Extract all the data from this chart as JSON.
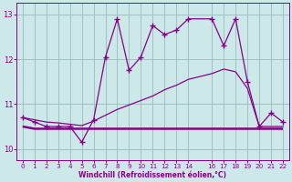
{
  "xlabel": "Windchill (Refroidissement éolien,°C)",
  "background_color": "#cce8e8",
  "grid_color": "#99bbbb",
  "line_color": "#880088",
  "xlim": [
    -0.5,
    22.5
  ],
  "ylim": [
    9.75,
    13.25
  ],
  "yticks": [
    10,
    11,
    12,
    13
  ],
  "xticks": [
    0,
    1,
    2,
    3,
    4,
    5,
    6,
    7,
    8,
    9,
    10,
    11,
    12,
    13,
    14,
    16,
    17,
    18,
    19,
    20,
    21,
    22
  ],
  "s1_x": [
    0,
    1,
    2,
    3,
    4,
    5,
    6,
    7,
    8,
    9,
    10,
    11,
    12,
    13,
    14,
    16,
    17,
    18,
    19,
    20,
    21,
    22
  ],
  "s1_y": [
    10.7,
    10.6,
    10.5,
    10.5,
    10.5,
    10.15,
    10.65,
    12.05,
    12.9,
    11.75,
    12.05,
    12.75,
    12.55,
    12.65,
    12.9,
    12.9,
    12.3,
    12.9,
    11.5,
    10.5,
    10.8,
    10.6
  ],
  "s2_x": [
    0,
    1,
    2,
    3,
    4,
    5,
    6,
    7,
    8,
    9,
    10,
    11,
    12,
    13,
    14,
    16,
    17,
    18,
    19,
    20,
    21,
    22
  ],
  "s2_y": [
    10.7,
    10.65,
    10.6,
    10.58,
    10.55,
    10.52,
    10.62,
    10.75,
    10.88,
    10.98,
    11.08,
    11.18,
    11.32,
    11.42,
    11.55,
    11.68,
    11.78,
    11.72,
    11.35,
    10.5,
    10.5,
    10.5
  ],
  "s3_x": [
    0,
    1,
    2,
    3,
    4,
    5,
    6,
    9,
    10,
    13,
    14,
    16,
    17,
    19,
    20,
    21,
    22
  ],
  "s3_y": [
    10.5,
    10.45,
    10.45,
    10.45,
    10.45,
    10.45,
    10.45,
    10.45,
    10.45,
    10.45,
    10.45,
    10.45,
    10.45,
    10.45,
    10.45,
    10.45,
    10.45
  ],
  "figsize": [
    3.2,
    2.0
  ],
  "dpi": 100
}
